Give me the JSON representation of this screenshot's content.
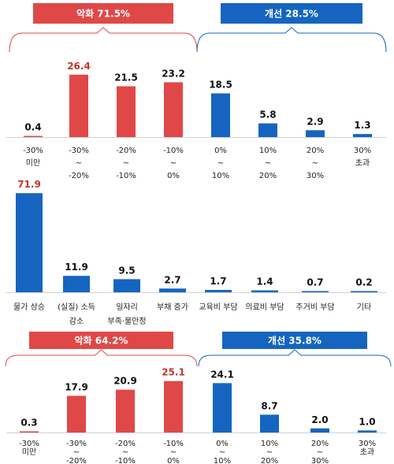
{
  "colors": {
    "red": "#e04848",
    "blue": "#1565c0",
    "red_text": "#c0392b",
    "dark_text": "#111111"
  },
  "chart_data": [
    {
      "type": "bar",
      "groups": [
        {
          "label": "악화 71.5%",
          "color": "#e04848",
          "from": 0,
          "to": 3
        },
        {
          "label": "개선 28.5%",
          "color": "#1565c0",
          "from": 4,
          "to": 7
        }
      ],
      "categories": [
        [
          "-30%",
          "미만"
        ],
        [
          "-30%",
          "~",
          "-20%"
        ],
        [
          "-20%",
          "~",
          "-10%"
        ],
        [
          "-10%",
          "~",
          "0%"
        ],
        [
          "0%",
          "~",
          "10%"
        ],
        [
          "10%",
          "~",
          "20%"
        ],
        [
          "20%",
          "~",
          "30%"
        ],
        [
          "30%",
          "초과"
        ]
      ],
      "values": [
        0.4,
        26.4,
        21.5,
        23.2,
        18.5,
        5.8,
        2.9,
        1.3
      ],
      "labels": [
        "0.4",
        "26.4",
        "21.5",
        "23.2",
        "18.5",
        "5.8",
        "2.9",
        "1.3"
      ],
      "colors": [
        "#e04848",
        "#e04848",
        "#e04848",
        "#e04848",
        "#1565c0",
        "#1565c0",
        "#1565c0",
        "#1565c0"
      ],
      "label_colors": [
        "#111111",
        "#c0392b",
        "#111111",
        "#111111",
        "#111111",
        "#111111",
        "#111111",
        "#111111"
      ]
    },
    {
      "type": "bar",
      "groups": [],
      "categories": [
        [
          "물가 상승"
        ],
        [
          "(실질) 소득",
          "감소"
        ],
        [
          "일자리",
          "부족·불안정"
        ],
        [
          "부채 증가"
        ],
        [
          "교육비 부담"
        ],
        [
          "의료비 부담"
        ],
        [
          "주거비 부담"
        ],
        [
          "기타"
        ]
      ],
      "values": [
        71.9,
        11.9,
        9.5,
        2.7,
        1.7,
        1.4,
        0.7,
        0.2
      ],
      "labels": [
        "71.9",
        "11.9",
        "9.5",
        "2.7",
        "1.7",
        "1.4",
        "0.7",
        "0.2"
      ],
      "colors": [
        "#1565c0",
        "#1565c0",
        "#1565c0",
        "#1565c0",
        "#1565c0",
        "#1565c0",
        "#1565c0",
        "#1565c0"
      ],
      "label_colors": [
        "#c0392b",
        "#111111",
        "#111111",
        "#111111",
        "#111111",
        "#111111",
        "#111111",
        "#111111"
      ]
    },
    {
      "type": "bar",
      "groups": [
        {
          "label": "악화 64.2%",
          "color": "#e04848",
          "from": 0,
          "to": 3
        },
        {
          "label": "개선 35.8%",
          "color": "#1565c0",
          "from": 4,
          "to": 7
        }
      ],
      "categories": [
        [
          "-30%",
          "미만"
        ],
        [
          "-30%",
          "~",
          "-20%"
        ],
        [
          "-20%",
          "~",
          "-10%"
        ],
        [
          "-10%",
          "~",
          "0%"
        ],
        [
          "0%",
          "~",
          "10%"
        ],
        [
          "10%",
          "~",
          "20%"
        ],
        [
          "20%",
          "~",
          "30%"
        ],
        [
          "30%",
          "초과"
        ]
      ],
      "values": [
        0.3,
        17.9,
        20.9,
        25.1,
        24.1,
        8.7,
        2.0,
        1.0
      ],
      "labels": [
        "0.3",
        "17.9",
        "20.9",
        "25.1",
        "24.1",
        "8.7",
        "2.0",
        "1.0"
      ],
      "colors": [
        "#e04848",
        "#e04848",
        "#e04848",
        "#e04848",
        "#1565c0",
        "#1565c0",
        "#1565c0",
        "#1565c0"
      ],
      "label_colors": [
        "#111111",
        "#111111",
        "#111111",
        "#c0392b",
        "#111111",
        "#111111",
        "#111111",
        "#111111"
      ]
    }
  ]
}
